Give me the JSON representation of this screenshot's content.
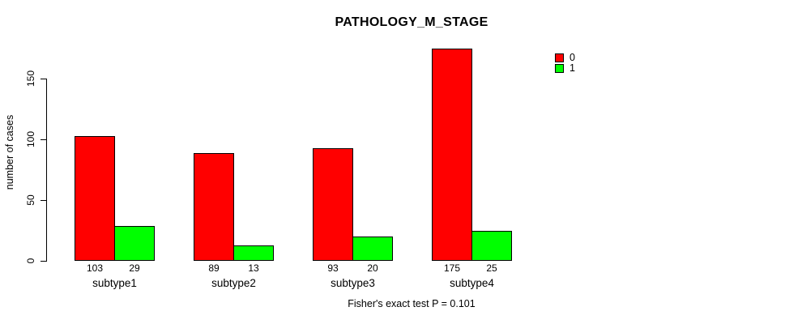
{
  "chart_data": {
    "type": "bar",
    "title": "PATHOLOGY_M_STAGE",
    "xlabel": "",
    "ylabel": "number of cases",
    "categories": [
      "subtype1",
      "subtype2",
      "subtype3",
      "subtype4"
    ],
    "series": [
      {
        "name": "0",
        "color": "#FF0000",
        "values": [
          103,
          89,
          93,
          175
        ]
      },
      {
        "name": "1",
        "color": "#00FF00",
        "values": [
          29,
          13,
          20,
          25
        ]
      }
    ],
    "value_labels_shown": true,
    "yticks": [
      0,
      50,
      100,
      150
    ],
    "ylim": [
      0,
      175
    ],
    "grid": false,
    "legend_position": "top-right",
    "annotation": "Fisher's exact test P = 0.101",
    "axis_color": "#000000",
    "background_color": "#FFFFFF"
  }
}
